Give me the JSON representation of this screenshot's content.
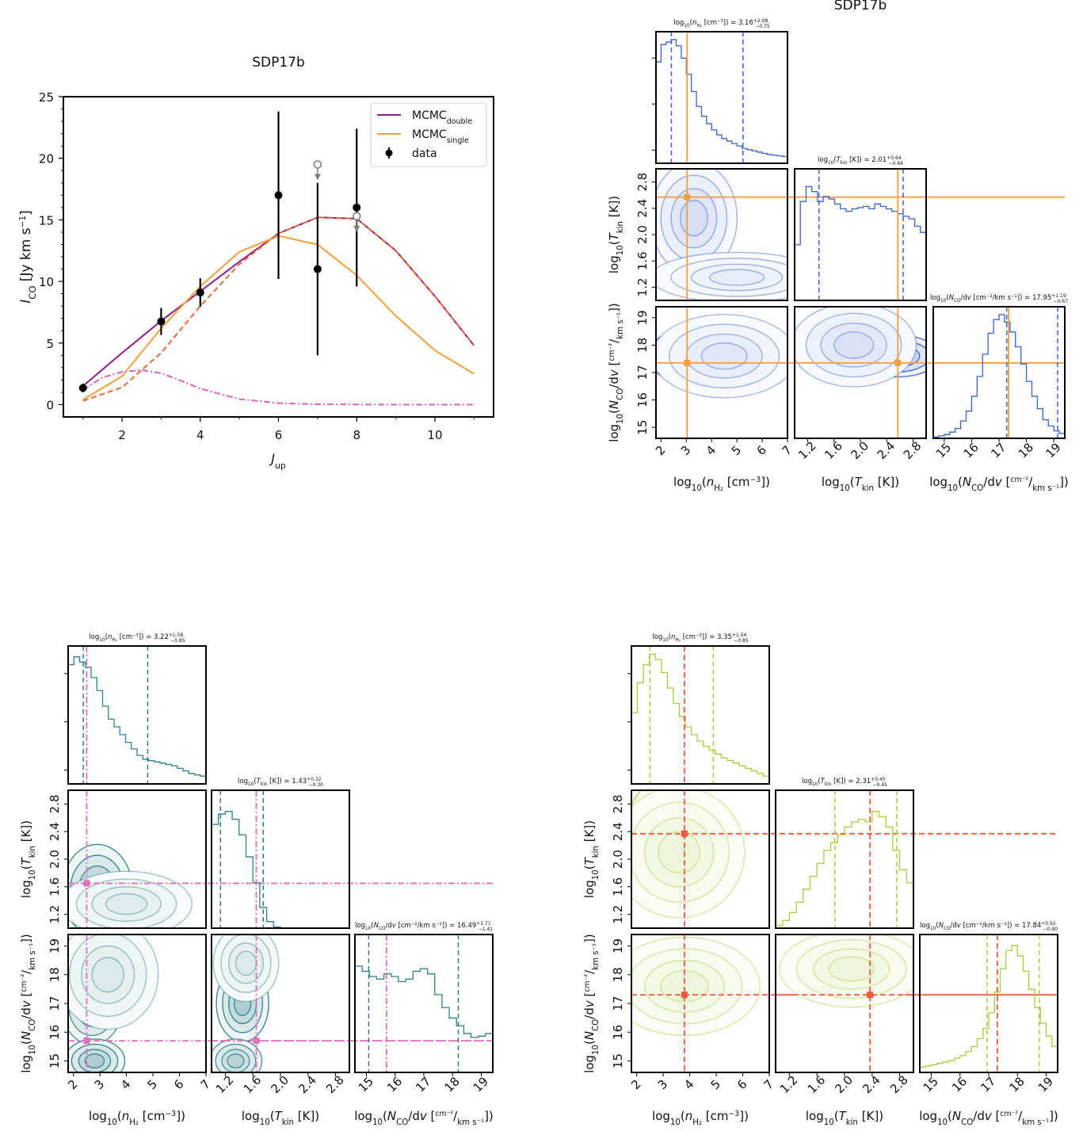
{
  "colors": {
    "double": "#8b1f86",
    "single": "#f2a13e",
    "dashed_component": "#e96a3c",
    "dashdot_component": "#d966b9",
    "data": "#000000",
    "upper_limit": "#7a7a7a",
    "corner_A": "#3a62d4",
    "corner_A_truth": "#f0a040",
    "corner_B": "#2e7f86",
    "corner_B_truth": "#e070c0",
    "corner_C": "#a8cc3c",
    "corner_C_truth": "#ee5a3c"
  },
  "sled": {
    "title": "SDP17b",
    "xlabel": "Jup",
    "ylabel": "I_CO [Jy km s⁻¹]",
    "legend": [
      {
        "label": "MCMCdouble",
        "color": "#8b1f86",
        "kind": "line"
      },
      {
        "label": "MCMCsingle",
        "color": "#f2a13e",
        "kind": "line"
      },
      {
        "label": "data",
        "color": "#000000",
        "kind": "marker"
      }
    ]
  },
  "chart_data": [
    {
      "type": "line",
      "title": "SDP17b",
      "xlabel": "Jup",
      "ylabel": "I_CO [Jy km s⁻¹]",
      "xlim": [
        0.5,
        11.5
      ],
      "ylim": [
        -1,
        25
      ],
      "xticks": [
        2,
        4,
        6,
        8,
        10
      ],
      "yticks": [
        0,
        5,
        10,
        15,
        20,
        25
      ],
      "legend_position": "top-right",
      "series": [
        {
          "name": "MCMCdouble",
          "style": "solid",
          "color": "#8b1f86",
          "x": [
            1,
            2,
            3,
            4,
            5,
            6,
            7,
            8,
            9,
            10,
            11
          ],
          "y": [
            1.5,
            4.2,
            6.8,
            9.2,
            11.6,
            13.9,
            15.2,
            15.1,
            12.5,
            8.8,
            4.8
          ]
        },
        {
          "name": "MCMCsingle",
          "style": "solid",
          "color": "#f2a13e",
          "x": [
            1,
            2,
            3,
            4,
            5,
            6,
            7,
            8,
            9,
            10,
            11
          ],
          "y": [
            0.4,
            2.3,
            6.2,
            9.6,
            12.4,
            13.7,
            13.0,
            10.5,
            7.2,
            4.4,
            2.5
          ]
        },
        {
          "style": "dashed",
          "color": "#e96a3c",
          "x": [
            1,
            2,
            3,
            4,
            5,
            6,
            7,
            8,
            9,
            10,
            11
          ],
          "y": [
            0.3,
            1.4,
            4.2,
            8.0,
            11.4,
            13.9,
            15.2,
            15.1,
            12.5,
            8.8,
            4.8
          ]
        },
        {
          "style": "dashdot",
          "color": "#d966b9",
          "x": [
            1,
            1.5,
            2,
            2.5,
            3,
            3.5,
            4,
            5,
            6,
            7,
            8,
            9,
            10,
            11
          ],
          "y": [
            1.2,
            2.2,
            2.65,
            2.8,
            2.55,
            1.95,
            1.3,
            0.45,
            0.12,
            0.03,
            0.01,
            0,
            0,
            0
          ]
        }
      ],
      "data_points": [
        {
          "x": 1,
          "y": 1.35,
          "err": 0.35
        },
        {
          "x": 3,
          "y": 6.75,
          "err": 1.1
        },
        {
          "x": 4,
          "y": 9.1,
          "err": 1.15
        },
        {
          "x": 6,
          "y": 17.0,
          "err_low": 6.8,
          "err_high": 6.8
        },
        {
          "x": 7,
          "y": 11.0,
          "err_low": 7.0,
          "err_high": 7.0
        },
        {
          "x": 8,
          "y": 16.0,
          "err_low": 6.4,
          "err_high": 6.4
        }
      ],
      "upper_limits": [
        {
          "x": 7,
          "y": 19.5
        },
        {
          "x": 8,
          "y": 15.3
        }
      ]
    },
    {
      "type": "corner",
      "title": "SDP17b",
      "color": "#3a62d4",
      "truth_color": "#f0a040",
      "params": [
        "log10(nH2 [cm⁻³])",
        "log10(Tkin [K])",
        "log10(NCO/dv [cm⁻² / km s⁻¹])"
      ],
      "ranges": [
        [
          1.8,
          7.0
        ],
        [
          1.0,
          3.0
        ],
        [
          14.6,
          19.4
        ]
      ],
      "ticks": [
        [
          2,
          3,
          4,
          5,
          6,
          7
        ],
        [
          1.2,
          1.6,
          2.0,
          2.4,
          2.8
        ],
        [
          15,
          16,
          17,
          18,
          19
        ]
      ],
      "tick_labels": [
        [
          "2",
          "3",
          "4",
          "5",
          "6",
          "7"
        ],
        [
          "1.2",
          "1.6",
          "2.0",
          "2.4",
          "2.8"
        ],
        [
          "15",
          "16",
          "17",
          "18",
          "19"
        ]
      ],
      "medians": [
        3.16,
        2.01,
        17.95
      ],
      "plus": [
        2.08,
        0.64,
        1.19
      ],
      "minus": [
        0.75,
        0.64,
        0.67
      ],
      "quantile_lines": [
        [
          2.41,
          5.24
        ],
        [
          1.37,
          2.65
        ],
        [
          17.28,
          19.14
        ]
      ],
      "truths": [
        3.03,
        2.57,
        17.35
      ],
      "hist": [
        [
          0.82,
          0.96,
          0.98,
          1.0,
          0.95,
          0.85,
          0.72,
          0.58,
          0.46,
          0.38,
          0.32,
          0.27,
          0.23,
          0.2,
          0.18,
          0.16,
          0.14,
          0.12,
          0.11,
          0.1,
          0.09,
          0.08,
          0.07,
          0.065,
          0.06,
          0.055
        ],
        [
          0.45,
          0.8,
          0.92,
          0.88,
          0.8,
          0.84,
          0.82,
          0.78,
          0.74,
          0.72,
          0.74,
          0.75,
          0.76,
          0.74,
          0.78,
          0.76,
          0.74,
          0.72,
          0.7,
          0.68,
          0.66,
          0.6,
          0.55
        ],
        [
          0.01,
          0.02,
          0.03,
          0.05,
          0.08,
          0.14,
          0.22,
          0.34,
          0.5,
          0.68,
          0.85,
          0.96,
          1.0,
          0.94,
          0.86,
          0.74,
          0.6,
          0.46,
          0.34,
          0.24,
          0.15,
          0.1,
          0.06,
          0.04
        ]
      ],
      "blob_pairs": [
        {
          "i": 0,
          "j": 1,
          "blobs": [
            [
              2.9,
              2.55,
              0.5,
              0.22,
              1.0
            ],
            [
              3.3,
              2.25,
              0.9,
              0.45,
              0.55
            ],
            [
              5.0,
              1.35,
              1.8,
              0.2,
              0.3
            ]
          ]
        },
        {
          "i": 0,
          "j": 2,
          "blobs": [
            [
              3.0,
              17.6,
              0.8,
              0.5,
              1.0
            ],
            [
              4.5,
              17.6,
              1.5,
              0.8,
              0.4
            ]
          ]
        },
        {
          "i": 1,
          "j": 2,
          "blobs": [
            [
              2.55,
              17.6,
              0.35,
              0.4,
              1.0
            ],
            [
              1.9,
              18.0,
              0.5,
              0.8,
              0.5
            ]
          ]
        }
      ]
    },
    {
      "type": "corner",
      "title": "",
      "color": "#2e7f86",
      "truth_color": "#e070c0",
      "params": [
        "log10(nH2 [cm⁻³])",
        "log10(Tkin [K])",
        "log10(NCO/dv [cm⁻² / km s⁻¹])"
      ],
      "ranges": [
        [
          1.8,
          7.0
        ],
        [
          1.0,
          3.0
        ],
        [
          14.6,
          19.4
        ]
      ],
      "ticks": [
        [
          2,
          3,
          4,
          5,
          6,
          7
        ],
        [
          1.2,
          1.6,
          2.0,
          2.4,
          2.8
        ],
        [
          15,
          16,
          17,
          18,
          19
        ]
      ],
      "tick_labels": [
        [
          "2",
          "3",
          "4",
          "5",
          "6",
          "7"
        ],
        [
          "1.2",
          "1.6",
          "2.0",
          "2.4",
          "2.8"
        ],
        [
          "15",
          "16",
          "17",
          "18",
          "19"
        ]
      ],
      "medians": [
        3.22,
        1.43,
        16.49
      ],
      "plus": [
        1.58,
        0.32,
        1.71
      ],
      "minus": [
        0.85,
        0.3,
        1.41
      ],
      "quantile_lines": [
        [
          2.37,
          4.8
        ],
        [
          1.13,
          1.75
        ],
        [
          15.08,
          18.2
        ]
      ],
      "truths": [
        2.5,
        1.65,
        15.7
      ],
      "hist": [
        [
          0.92,
          0.98,
          0.94,
          0.9,
          0.82,
          0.72,
          0.6,
          0.5,
          0.44,
          0.38,
          0.32,
          0.27,
          0.22,
          0.19,
          0.18,
          0.17,
          0.16,
          0.15,
          0.14,
          0.12,
          0.1,
          0.08,
          0.07,
          0.06
        ],
        [
          0.8,
          0.88,
          0.9,
          0.84,
          0.72,
          0.55,
          0.35,
          0.16,
          0.05,
          0.01,
          0,
          0,
          0,
          0,
          0,
          0,
          0,
          0,
          0,
          0
        ],
        [
          0.82,
          0.78,
          0.74,
          0.72,
          0.76,
          0.74,
          0.7,
          0.72,
          0.78,
          0.8,
          0.76,
          0.6,
          0.5,
          0.42,
          0.36,
          0.3,
          0.27,
          0.28,
          0.3
        ]
      ],
      "blob_pairs": [
        {
          "i": 0,
          "j": 1,
          "blobs": [
            [
              2.9,
              1.55,
              0.7,
              0.35,
              1.0
            ],
            [
              4.0,
              1.35,
              1.3,
              0.25,
              0.4
            ]
          ]
        },
        {
          "i": 0,
          "j": 2,
          "blobs": [
            [
              2.7,
              16.9,
              0.6,
              0.7,
              0.9
            ],
            [
              2.8,
              15.0,
              0.6,
              0.4,
              1.0
            ],
            [
              3.3,
              18.0,
              1.0,
              1.0,
              0.45
            ]
          ]
        },
        {
          "i": 1,
          "j": 2,
          "blobs": [
            [
              1.45,
              17.0,
              0.2,
              0.7,
              1.0
            ],
            [
              1.35,
              15.0,
              0.2,
              0.4,
              0.9
            ],
            [
              1.5,
              18.4,
              0.25,
              0.7,
              0.45
            ]
          ]
        }
      ]
    },
    {
      "type": "corner",
      "title": "",
      "color": "#a8cc3c",
      "truth_color": "#ee5a3c",
      "params": [
        "log10(nH2 [cm⁻³])",
        "log10(Tkin [K])",
        "log10(NCO/dv [cm⁻² / km s⁻¹])"
      ],
      "ranges": [
        [
          1.8,
          7.0
        ],
        [
          1.0,
          3.0
        ],
        [
          14.6,
          19.4
        ]
      ],
      "ticks": [
        [
          2,
          3,
          4,
          5,
          6,
          7
        ],
        [
          1.2,
          1.6,
          2.0,
          2.4,
          2.8
        ],
        [
          15,
          16,
          17,
          18,
          19
        ]
      ],
      "tick_labels": [
        [
          "2",
          "3",
          "4",
          "5",
          "6",
          "7"
        ],
        [
          "1.2",
          "1.6",
          "2.0",
          "2.4",
          "2.8"
        ],
        [
          "15",
          "16",
          "17",
          "18",
          "19"
        ]
      ],
      "medians": [
        3.35,
        2.31,
        17.84
      ],
      "plus": [
        1.54,
        0.45,
        0.92
      ],
      "minus": [
        0.85,
        0.45,
        0.9
      ],
      "quantile_lines": [
        [
          2.5,
          4.89
        ],
        [
          1.86,
          2.76
        ],
        [
          16.94,
          18.76
        ]
      ],
      "truths": [
        3.8,
        2.37,
        17.3
      ],
      "hist": [
        [
          0.55,
          0.78,
          0.92,
          1.0,
          0.96,
          0.86,
          0.74,
          0.62,
          0.52,
          0.44,
          0.38,
          0.33,
          0.29,
          0.26,
          0.23,
          0.2,
          0.18,
          0.16,
          0.14,
          0.12,
          0.1,
          0.08,
          0.06
        ],
        [
          0.02,
          0.06,
          0.12,
          0.2,
          0.3,
          0.4,
          0.5,
          0.6,
          0.66,
          0.72,
          0.78,
          0.82,
          0.84,
          0.82,
          0.9,
          0.86,
          0.78,
          0.6,
          0.45,
          0.35
        ],
        [
          0.04,
          0.05,
          0.06,
          0.07,
          0.08,
          0.09,
          0.11,
          0.13,
          0.16,
          0.2,
          0.26,
          0.34,
          0.46,
          0.62,
          0.8,
          0.94,
          0.98,
          0.9,
          0.78,
          0.64,
          0.5,
          0.38,
          0.28,
          0.2
        ]
      ],
      "blob_pairs": [
        {
          "i": 0,
          "j": 1,
          "blobs": [
            [
              2.8,
              2.45,
              0.6,
              0.35,
              1.0
            ],
            [
              3.6,
              2.1,
              1.3,
              0.5,
              0.5
            ]
          ]
        },
        {
          "i": 0,
          "j": 2,
          "blobs": [
            [
              2.8,
              17.8,
              0.6,
              0.45,
              1.0
            ],
            [
              3.8,
              17.6,
              1.5,
              0.9,
              0.45
            ]
          ]
        },
        {
          "i": 1,
          "j": 2,
          "blobs": [
            [
              2.45,
              17.9,
              0.3,
              0.4,
              1.0
            ],
            [
              2.1,
              18.2,
              0.55,
              0.7,
              0.5
            ]
          ]
        }
      ]
    }
  ]
}
